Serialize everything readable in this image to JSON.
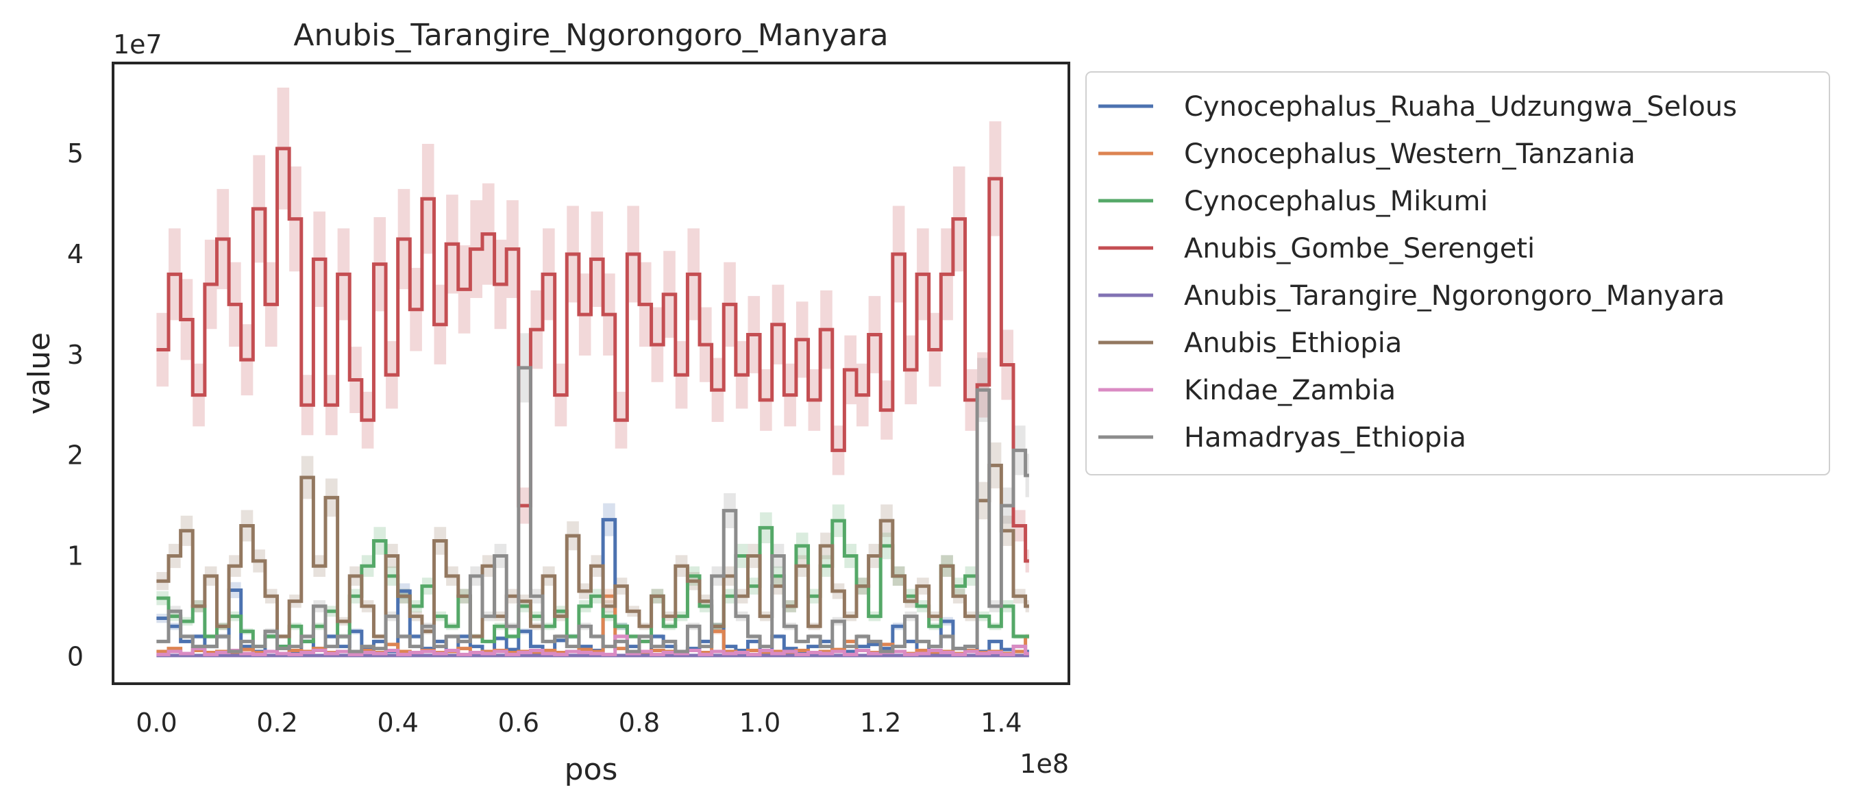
{
  "chart_data": {
    "type": "line",
    "style": "step-with-confidence-band",
    "title": "Anubis_Tarangire_Ngorongoro_Manyara",
    "xlabel": "pos",
    "ylabel": "value",
    "x_offset_text": "1e8",
    "y_offset_text": "1e7",
    "xlim": [
      -7200000,
      151200000
    ],
    "ylim": [
      -2700000,
      59000000
    ],
    "x_ticks": [
      0,
      20000000,
      40000000,
      60000000,
      80000000,
      100000000,
      120000000,
      140000000
    ],
    "x_tick_labels": [
      "0.0",
      "0.2",
      "0.4",
      "0.6",
      "0.8",
      "1.0",
      "1.2",
      "1.4"
    ],
    "y_ticks": [
      0,
      10000000,
      20000000,
      30000000,
      40000000,
      50000000
    ],
    "y_tick_labels": [
      "0",
      "1",
      "2",
      "3",
      "4",
      "5"
    ],
    "grid": false,
    "legend_position": "outside-upper-right",
    "band_fraction": 0.12,
    "x": [
      0,
      2000000,
      4000000,
      6000000,
      8000000,
      10000000,
      12000000,
      14000000,
      16000000,
      18000000,
      20000000,
      22000000,
      24000000,
      26000000,
      28000000,
      30000000,
      32000000,
      34000000,
      36000000,
      38000000,
      40000000,
      42000000,
      44000000,
      46000000,
      48000000,
      50000000,
      52000000,
      54000000,
      56000000,
      58000000,
      60000000,
      62000000,
      64000000,
      66000000,
      68000000,
      70000000,
      72000000,
      74000000,
      76000000,
      78000000,
      80000000,
      82000000,
      84000000,
      86000000,
      88000000,
      90000000,
      92000000,
      94000000,
      96000000,
      98000000,
      100000000,
      102000000,
      104000000,
      106000000,
      108000000,
      110000000,
      112000000,
      114000000,
      116000000,
      118000000,
      120000000,
      122000000,
      124000000,
      126000000,
      128000000,
      130000000,
      132000000,
      134000000,
      136000000,
      138000000,
      140000000,
      142000000,
      144000000
    ],
    "series": [
      {
        "name": "Cynocephalus_Ruaha_Udzungwa_Selous",
        "color": "#4c72b0",
        "values": [
          3.8,
          3.0,
          1.5,
          2.0,
          1.0,
          2.0,
          6.6,
          1.0,
          0.5,
          2.0,
          1.0,
          0.5,
          1.5,
          0.8,
          2.0,
          1.0,
          2.5,
          0.8,
          1.5,
          0.5,
          6.5,
          2.0,
          0.8,
          1.5,
          0.6,
          2.0,
          1.0,
          0.5,
          1.8,
          0.7,
          2.5,
          1.0,
          0.5,
          1.6,
          2.0,
          1.0,
          0.6,
          13.6,
          3.0,
          1.0,
          0.5,
          2.0,
          1.0,
          0.5,
          0.8,
          1.5,
          3.0,
          1.0,
          0.6,
          1.5,
          0.5,
          2.0,
          0.8,
          0.5,
          1.0,
          1.5,
          0.6,
          0.5,
          1.0,
          1.2,
          0.8,
          3.0,
          1.5,
          0.5,
          1.0,
          3.5,
          0.8,
          1.0,
          0.5,
          1.5,
          0.7,
          1.0,
          0.5
        ]
      },
      {
        "name": "Cynocephalus_Western_Tanzania",
        "color": "#dd8452",
        "values": [
          0.5,
          0.8,
          0.3,
          0.6,
          0.4,
          0.5,
          0.3,
          0.7,
          0.4,
          0.5,
          0.3,
          0.6,
          0.5,
          0.8,
          0.4,
          0.5,
          0.3,
          0.6,
          0.4,
          1.2,
          0.5,
          0.3,
          0.6,
          0.4,
          0.5,
          0.8,
          0.3,
          0.5,
          0.6,
          0.4,
          0.5,
          0.3,
          0.6,
          0.4,
          0.5,
          0.7,
          0.5,
          6.0,
          0.8,
          0.5,
          0.4,
          0.6,
          0.5,
          0.3,
          0.6,
          0.4,
          2.5,
          0.5,
          0.3,
          0.6,
          0.4,
          0.5,
          0.3,
          0.6,
          0.4,
          0.5,
          0.7,
          1.5,
          0.6,
          0.4,
          1.2,
          0.5,
          0.3,
          0.6,
          0.4,
          0.5,
          0.3,
          0.6,
          0.4,
          0.5,
          0.3,
          0.5,
          2.0
        ]
      },
      {
        "name": "Cynocephalus_Mikumi",
        "color": "#55a868",
        "values": [
          5.8,
          4.0,
          3.5,
          5.0,
          2.0,
          3.0,
          4.0,
          2.5,
          1.0,
          2.0,
          1.0,
          3.0,
          1.5,
          3.0,
          4.5,
          2.0,
          6.0,
          9.0,
          11.5,
          8.0,
          6.0,
          5.0,
          7.0,
          4.0,
          3.0,
          6.0,
          2.0,
          1.5,
          3.0,
          2.0,
          5.0,
          4.0,
          3.0,
          4.5,
          2.0,
          5.0,
          6.0,
          4.0,
          3.0,
          2.0,
          1.5,
          6.0,
          3.0,
          4.0,
          8.0,
          5.0,
          3.0,
          6.0,
          10.0,
          7.0,
          12.8,
          8.0,
          5.0,
          11.0,
          6.0,
          9.0,
          13.5,
          10.0,
          7.0,
          4.0,
          11.0,
          8.0,
          6.0,
          5.0,
          3.0,
          9.0,
          7.0,
          8.0,
          4.0,
          3.0,
          5.0,
          2.0,
          2.0
        ]
      },
      {
        "name": "Anubis_Gombe_Serengeti",
        "color": "#c44e52",
        "values": [
          30.5,
          38.0,
          33.5,
          26.0,
          37.0,
          41.5,
          35.0,
          29.5,
          44.5,
          35.0,
          50.5,
          43.5,
          25.0,
          39.5,
          25.0,
          38.0,
          27.5,
          23.5,
          39.0,
          28.0,
          41.5,
          34.5,
          45.5,
          33.0,
          41.0,
          36.5,
          40.5,
          42.0,
          37.0,
          40.5,
          15.0,
          32.5,
          38.0,
          26.0,
          40.0,
          34.0,
          39.5,
          34.0,
          23.5,
          40.0,
          35.0,
          31.0,
          36.0,
          28.0,
          38.0,
          31.0,
          26.5,
          35.0,
          28.0,
          32.0,
          25.5,
          33.0,
          26.0,
          31.5,
          25.5,
          32.5,
          20.5,
          28.5,
          26.0,
          32.0,
          24.5,
          40.0,
          28.5,
          38.0,
          30.5,
          38.0,
          43.5,
          25.5,
          27.0,
          47.5,
          29.0,
          13.0,
          9.5
        ]
      },
      {
        "name": "Anubis_Tarangire_Ngorongoro_Manyara",
        "color": "#8172b3",
        "values": [
          0.1,
          0.1,
          0.1,
          0.1,
          0.1,
          0.1,
          0.1,
          0.1,
          0.1,
          0.1,
          0.1,
          0.1,
          0.1,
          0.1,
          0.1,
          0.1,
          0.1,
          0.1,
          0.1,
          0.1,
          0.1,
          0.1,
          0.1,
          0.1,
          0.1,
          0.1,
          0.1,
          0.1,
          0.1,
          0.1,
          0.1,
          0.1,
          0.1,
          0.1,
          0.1,
          0.1,
          0.1,
          0.1,
          0.1,
          0.1,
          0.1,
          0.1,
          0.1,
          0.1,
          0.1,
          0.1,
          0.1,
          0.1,
          0.1,
          0.1,
          0.1,
          0.1,
          0.1,
          0.1,
          0.1,
          0.1,
          0.1,
          0.1,
          0.1,
          0.1,
          0.1,
          0.1,
          0.1,
          0.1,
          0.1,
          0.1,
          0.1,
          0.1,
          0.1,
          0.1,
          0.1,
          0.1,
          0.1
        ]
      },
      {
        "name": "Anubis_Ethiopia",
        "color": "#937860",
        "values": [
          7.5,
          10.0,
          12.5,
          5.0,
          8.0,
          3.0,
          9.0,
          13.0,
          9.5,
          6.0,
          2.0,
          5.5,
          17.8,
          9.0,
          15.8,
          3.5,
          8.0,
          5.0,
          2.0,
          10.0,
          6.0,
          4.0,
          2.5,
          11.5,
          8.0,
          6.0,
          2.0,
          9.0,
          4.0,
          6.0,
          5.5,
          3.0,
          8.0,
          4.0,
          12.0,
          6.5,
          9.0,
          5.0,
          7.0,
          4.5,
          3.0,
          6.0,
          4.0,
          9.0,
          7.5,
          5.5,
          3.0,
          8.0,
          6.0,
          10.0,
          4.0,
          7.0,
          5.0,
          9.0,
          3.0,
          11.0,
          6.5,
          4.0,
          7.0,
          10.0,
          13.5,
          8.0,
          5.5,
          7.0,
          4.0,
          9.0,
          6.0,
          4.0,
          15.5,
          19.0,
          12.5,
          6.0,
          5.0
        ]
      },
      {
        "name": "Kindae_Zambia",
        "color": "#da8bc3",
        "values": [
          0.2,
          0.5,
          0.3,
          0.8,
          0.2,
          0.4,
          0.6,
          0.3,
          0.2,
          0.5,
          0.3,
          0.2,
          0.4,
          0.6,
          0.3,
          0.5,
          0.2,
          0.4,
          0.3,
          0.6,
          0.2,
          0.4,
          0.5,
          0.3,
          0.6,
          0.2,
          0.4,
          0.3,
          0.5,
          0.2,
          0.4,
          0.6,
          0.3,
          0.2,
          0.5,
          0.4,
          0.3,
          0.2,
          2.0,
          0.3,
          0.5,
          0.2,
          0.4,
          0.3,
          0.6,
          0.2,
          0.5,
          0.3,
          0.4,
          0.2,
          0.6,
          0.3,
          0.5,
          0.2,
          0.4,
          0.3,
          0.5,
          0.2,
          0.6,
          0.3,
          0.4,
          0.5,
          0.2,
          0.3,
          0.6,
          0.4,
          0.2,
          0.5,
          0.3,
          0.4,
          0.2,
          1.0,
          0.3
        ]
      },
      {
        "name": "Hamadryas_Ethiopia",
        "color": "#8c8c8c",
        "values": [
          1.5,
          4.5,
          2.0,
          1.0,
          1.0,
          2.0,
          0.5,
          1.5,
          1.0,
          2.5,
          0.8,
          1.0,
          2.0,
          5.0,
          1.0,
          2.0,
          0.5,
          1.0,
          0.8,
          4.0,
          2.0,
          1.0,
          3.0,
          1.0,
          2.0,
          1.5,
          8.0,
          4.0,
          10.0,
          3.0,
          28.7,
          6.0,
          1.5,
          2.0,
          1.0,
          3.0,
          2.0,
          1.0,
          1.5,
          0.5,
          2.0,
          1.0,
          1.5,
          0.5,
          3.0,
          1.0,
          8.0,
          14.5,
          4.0,
          2.0,
          1.0,
          10.0,
          3.0,
          1.5,
          2.0,
          1.0,
          3.5,
          1.0,
          2.0,
          1.5,
          0.5,
          1.0,
          4.0,
          1.5,
          1.0,
          2.0,
          0.8,
          1.0,
          26.5,
          5.0,
          15.0,
          20.5,
          18.0
        ]
      }
    ]
  }
}
